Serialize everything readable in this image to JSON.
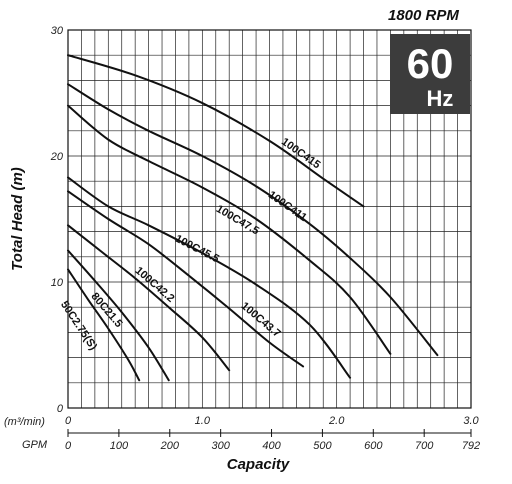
{
  "header": {
    "rpm": "1800 RPM",
    "badge_freq": "60",
    "badge_unit": "Hz"
  },
  "chart_data": {
    "type": "line",
    "xlabel": "Capacity",
    "ylabel": "Total Head (m)",
    "x_unit_primary": "(m³/min)",
    "x_unit_secondary": "GPM",
    "xlim": [
      0,
      3.0
    ],
    "ylim": [
      0,
      30
    ],
    "grid": true,
    "yticks": [
      "0",
      "10",
      "20",
      "30"
    ],
    "xticks_primary": [
      {
        "value": 0,
        "label": "0"
      },
      {
        "value": 1.0,
        "label": "1.0"
      },
      {
        "value": 2.0,
        "label": "2.0"
      },
      {
        "value": 3.0,
        "label": "3.0"
      }
    ],
    "xticks_secondary": [
      {
        "value": 0,
        "label": "0"
      },
      {
        "value": 100,
        "label": "100"
      },
      {
        "value": 200,
        "label": "200"
      },
      {
        "value": 300,
        "label": "300"
      },
      {
        "value": 400,
        "label": "400"
      },
      {
        "value": 500,
        "label": "500"
      },
      {
        "value": 600,
        "label": "600"
      },
      {
        "value": 700,
        "label": "700"
      },
      {
        "value": 792,
        "label": "792"
      }
    ],
    "series": [
      {
        "name": "100C415",
        "x": [
          0.0,
          0.5,
          1.0,
          1.5,
          1.9,
          2.2
        ],
        "y": [
          28.0,
          26.4,
          24.2,
          21.2,
          18.2,
          16.0
        ]
      },
      {
        "name": "100C411",
        "x": [
          0.0,
          0.3,
          0.6,
          1.0,
          1.4,
          1.8,
          2.1,
          2.4,
          2.75
        ],
        "y": [
          25.7,
          23.7,
          22.0,
          20.0,
          17.6,
          14.6,
          11.9,
          8.8,
          4.2
        ]
      },
      {
        "name": "100C47.5",
        "x": [
          0.0,
          0.3,
          0.6,
          1.0,
          1.4,
          1.8,
          2.1,
          2.4
        ],
        "y": [
          24.0,
          21.3,
          19.6,
          17.5,
          15.0,
          11.7,
          8.8,
          4.3
        ]
      },
      {
        "name": "100C45.5",
        "x": [
          0.0,
          0.3,
          0.6,
          1.0,
          1.4,
          1.8,
          2.1
        ],
        "y": [
          18.3,
          16.0,
          14.5,
          12.3,
          9.8,
          6.6,
          2.4
        ]
      },
      {
        "name": "100C43.7",
        "x": [
          0.0,
          0.3,
          0.6,
          0.9,
          1.2,
          1.5,
          1.75
        ],
        "y": [
          17.2,
          15.0,
          13.0,
          10.5,
          7.9,
          5.2,
          3.3
        ]
      },
      {
        "name": "100C42.2",
        "x": [
          0.0,
          0.25,
          0.5,
          0.75,
          1.0,
          1.2
        ],
        "y": [
          14.5,
          12.4,
          10.3,
          8.0,
          5.6,
          3.0
        ]
      },
      {
        "name": "80C21.5",
        "x": [
          0.0,
          0.2,
          0.4,
          0.6,
          0.75
        ],
        "y": [
          12.5,
          10.1,
          7.6,
          4.8,
          2.2
        ]
      },
      {
        "name": "50C2.75(S)",
        "x": [
          0.0,
          0.15,
          0.3,
          0.45,
          0.53
        ],
        "y": [
          11.0,
          8.6,
          6.3,
          3.8,
          2.2
        ]
      }
    ]
  }
}
